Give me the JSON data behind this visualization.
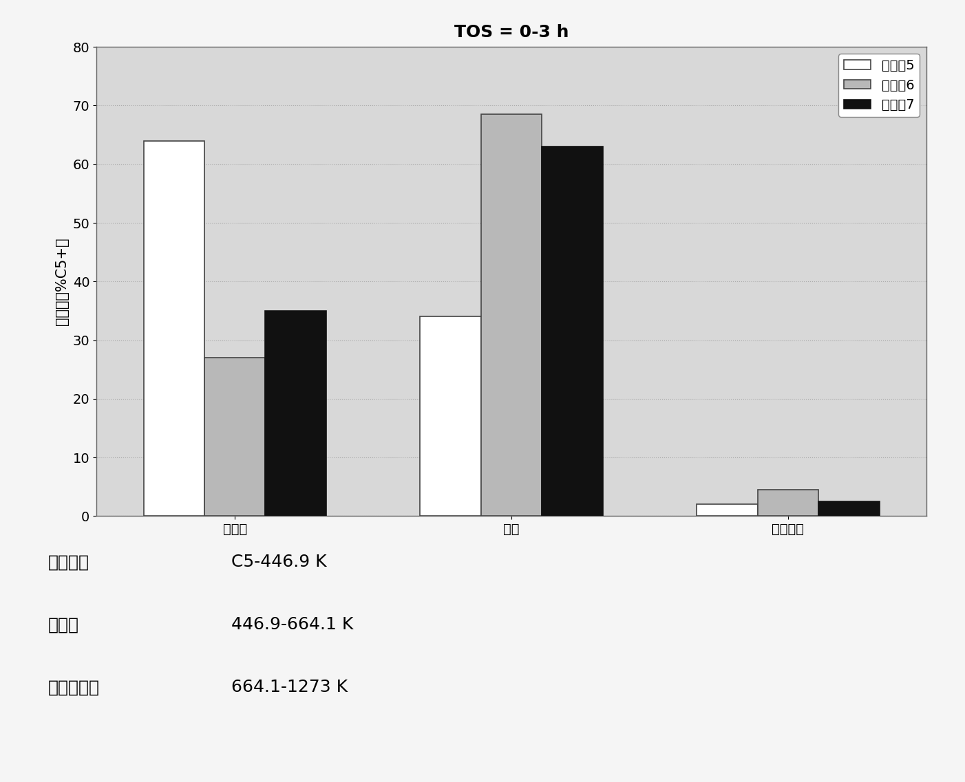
{
  "title": "TOS = 0-3 h",
  "categories": [
    "石脑油",
    "柴油",
    "重质级分"
  ],
  "series": {
    "实施例5": [
      64.0,
      34.0,
      2.0
    ],
    "实施例6": [
      27.0,
      68.5,
      4.5
    ],
    "实施例7": [
      35.0,
      63.0,
      2.5
    ]
  },
  "bar_colors": {
    "实施例5": "#ffffff",
    "实施例6": "#b8b8b8",
    "实施例7": "#111111"
  },
  "bar_edgecolors": {
    "实施例5": "#444444",
    "实施例6": "#444444",
    "实施例7": "#111111"
  },
  "ylabel": "选择性（%C5+）",
  "ylim": [
    0,
    80
  ],
  "yticks": [
    0,
    10,
    20,
    30,
    40,
    50,
    60,
    70,
    80
  ],
  "legend_labels": [
    "实施例5",
    "实施例6",
    "实施例7"
  ],
  "ann_labels": [
    "石脑油：",
    "C5-446.9 K",
    "柴油：",
    "446.9-664.1 K",
    "重质级分：",
    "664.1-1273 K"
  ],
  "background_color": "#d8d8d8",
  "plot_bg_color": "#ffffff",
  "grid_color": "#cccccc",
  "title_fontsize": 18,
  "ylabel_fontsize": 15,
  "tick_fontsize": 14,
  "legend_fontsize": 14,
  "ann_fontsize": 18,
  "bar_width": 0.22
}
